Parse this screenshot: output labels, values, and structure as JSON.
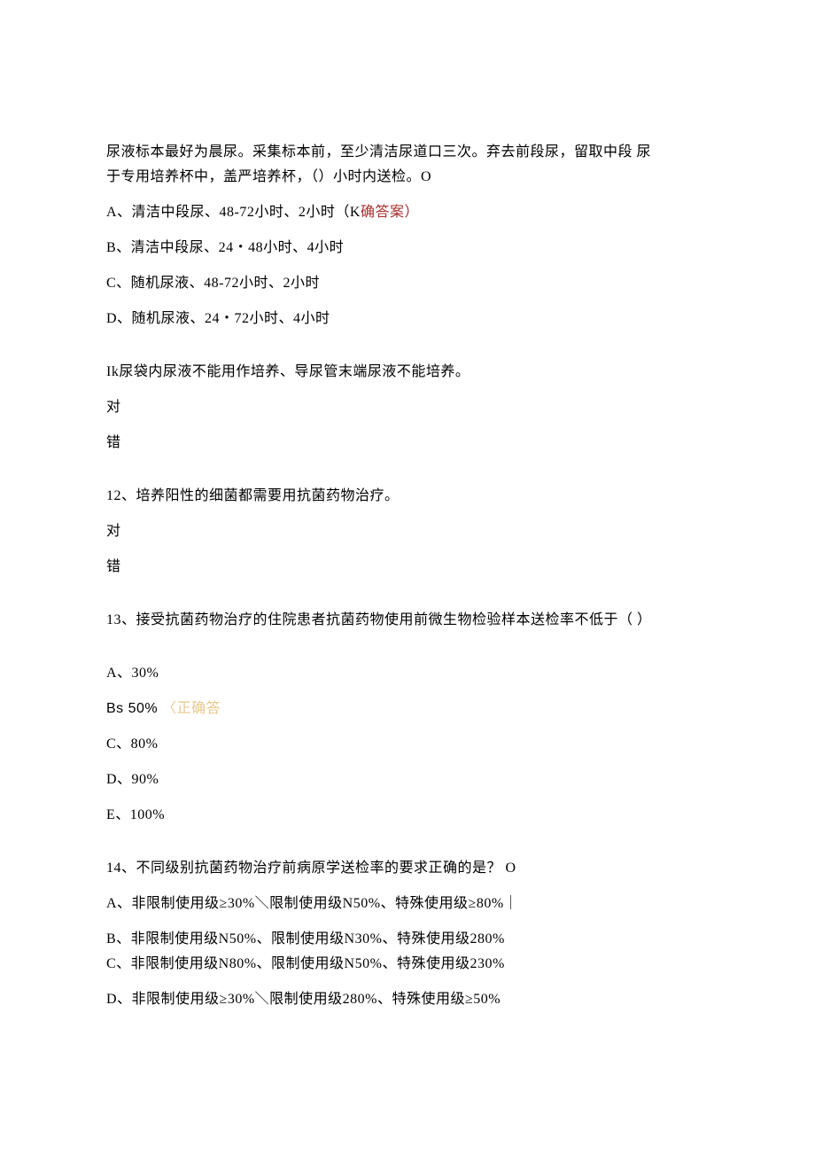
{
  "q10": {
    "stem1": "尿液标本最好为晨尿。采集标本前，至少清洁尿道口三次。弃去前段尿，留取中段 尿",
    "stem2": "于专用培养杯中，盖严培养杯，（）小时内送检。O",
    "optA_pre": "A、清洁中段尿、48-72小时、2小时（K",
    "optA_ans": "确答案）",
    "optB": "B、清洁中段尿、24・48小时、4小时",
    "optC": "C、随机尿液、48-72小时、2小时",
    "optD": "D、随机尿液、24・72小时、4小时"
  },
  "q11": {
    "stem": "Ik尿袋内尿液不能用作培养、导尿管末端尿液不能培养。",
    "true": "对",
    "false": "错"
  },
  "q12": {
    "stem": "12、培养阳性的细菌都需要用抗菌药物治疗。",
    "true": "对",
    "false": "错"
  },
  "q13": {
    "stem": "13、接受抗菌药物治疗的住院患者抗菌药物使用前微生物检验样本送检率不低于（ ）",
    "optA": "A、30%",
    "optB_pre": "Bs 50% ",
    "optB_ans": "〈正确答",
    "optC": "C、80%",
    "optD": "D、90%",
    "optE": "E、100%"
  },
  "q14": {
    "stem": "14、不同级别抗菌药物治疗前病原学送检率的要求正确的是？ O",
    "optA": "A、非限制使用级≥30%＼限制使用级N50%、特殊使用级≥80%｜",
    "optB": "B、非限制使用级N50%、限制使用级N30%、特殊使用级280%",
    "optC": "C、非限制使用级N80%、限制使用级N50%、特殊使用级230%",
    "optD": "D、非限制使用级≥30%＼限制使用级280%、特殊使用级≥50%"
  },
  "colors": {
    "text": "#000000",
    "answer_tag": "#a82f2f",
    "answer_tag_light": "#e8c88c",
    "background": "#ffffff"
  },
  "typography": {
    "body_fontsize_pt": 12,
    "font_family": "SimSun"
  }
}
